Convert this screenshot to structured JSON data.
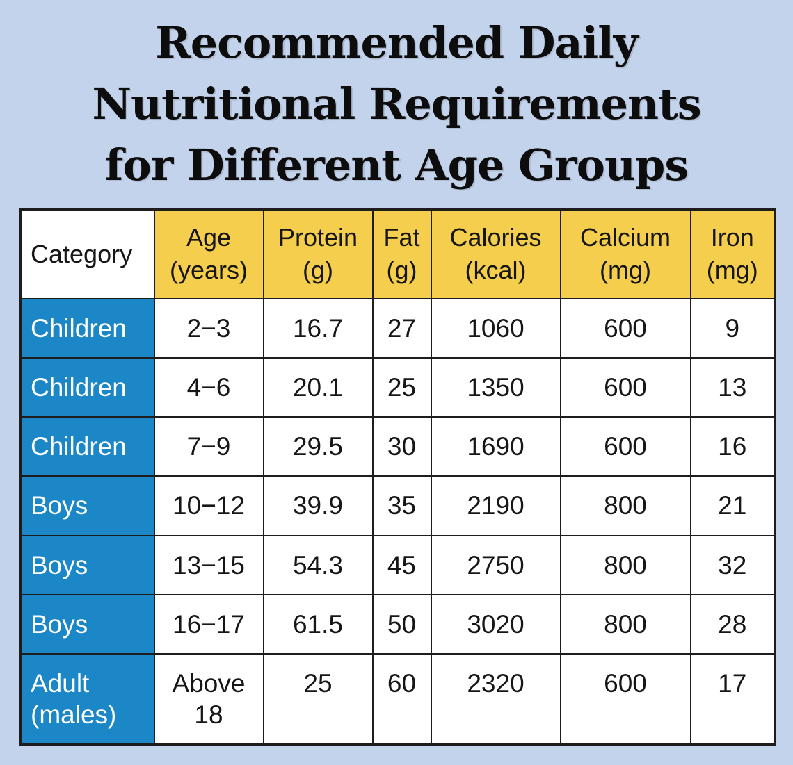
{
  "page": {
    "background": "#c3d3eb"
  },
  "title": {
    "lines": [
      "Recommended Daily",
      "Nutritional Requirements",
      "for Different Age Groups"
    ],
    "color": "#0d0d0d"
  },
  "table": {
    "colors": {
      "header_bg": "#f6ce4d",
      "category_col_bg": "#1b87c6",
      "cell_bg": "#ffffff",
      "border": "#1d1d1d",
      "text": "#161616",
      "category_text": "#ffffff"
    },
    "header": [
      "Category",
      "Age\n(years)",
      "Protein\n(g)",
      "Fat\n(g)",
      "Calories\n(kcal)",
      "Calcium\n(mg)",
      "Iron\n(mg)"
    ],
    "rows": [
      [
        "Children",
        "2−3",
        "16.7",
        "27",
        "1060",
        "600",
        "9"
      ],
      [
        "Children",
        "4−6",
        "20.1",
        "25",
        "1350",
        "600",
        "13"
      ],
      [
        "Children",
        "7−9",
        "29.5",
        "30",
        "1690",
        "600",
        "16"
      ],
      [
        "Boys",
        "10−12",
        "39.9",
        "35",
        "2190",
        "800",
        "21"
      ],
      [
        "Boys",
        "13−15",
        "54.3",
        "45",
        "2750",
        "800",
        "32"
      ],
      [
        "Boys",
        "16−17",
        "61.5",
        "50",
        "3020",
        "800",
        "28"
      ],
      [
        "Adult\n(males)",
        "Above\n18",
        "25",
        "60",
        "2320",
        "600",
        "17"
      ]
    ]
  },
  "chart_data": {
    "type": "table",
    "title": "Recommended Daily Nutritional Requirements for Different Age Groups",
    "columns": [
      "Category",
      "Age (years)",
      "Protein (g)",
      "Fat (g)",
      "Calories (kcal)",
      "Calcium (mg)",
      "Iron (mg)"
    ],
    "rows": [
      [
        "Children",
        "2–3",
        16.7,
        27,
        1060,
        600,
        9
      ],
      [
        "Children",
        "4–6",
        20.1,
        25,
        1350,
        600,
        13
      ],
      [
        "Children",
        "7–9",
        29.5,
        30,
        1690,
        600,
        16
      ],
      [
        "Boys",
        "10–12",
        39.9,
        35,
        2190,
        800,
        21
      ],
      [
        "Boys",
        "13–15",
        54.3,
        45,
        2750,
        800,
        32
      ],
      [
        "Boys",
        "16–17",
        61.5,
        50,
        3020,
        800,
        28
      ],
      [
        "Adult (males)",
        "Above 18",
        25,
        60,
        2320,
        600,
        17
      ]
    ]
  }
}
